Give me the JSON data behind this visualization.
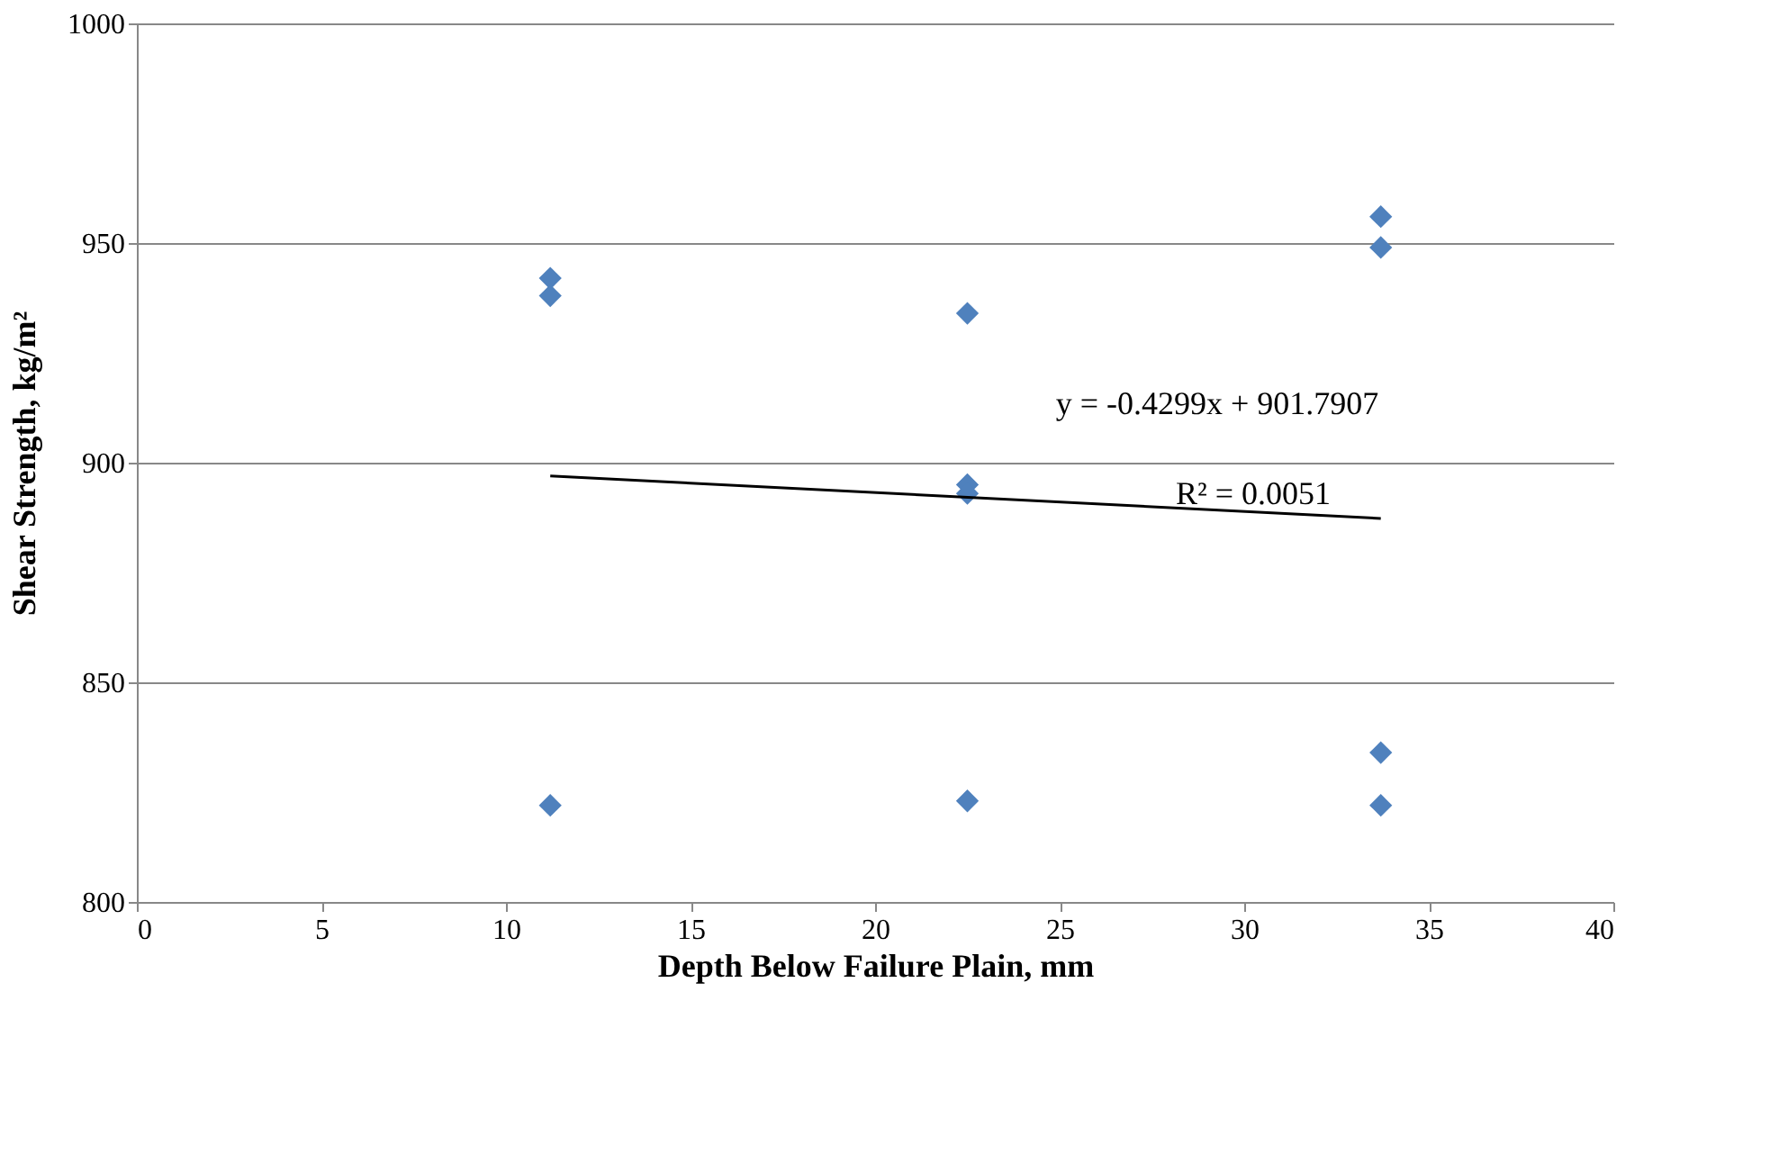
{
  "chart_data": {
    "type": "scatter",
    "xlabel": "Depth Below Failure Plain, mm",
    "ylabel": "Shear Strength, kg/m²",
    "xlim": [
      0,
      40
    ],
    "xticks": [
      0,
      5,
      10,
      15,
      20,
      25,
      30,
      35,
      40
    ],
    "ylim": [
      800,
      1000
    ],
    "yticks": [
      800,
      850,
      900,
      950,
      1000
    ],
    "grid": "y",
    "legend": false,
    "marker": "diamond",
    "series": [
      {
        "color": "#4f81bd",
        "x": [
          11.2,
          11.2,
          11.2,
          22.5,
          22.5,
          22.5,
          22.5,
          33.7,
          33.7,
          33.7,
          33.7
        ],
        "values": [
          942,
          938,
          822,
          934,
          895,
          893,
          823,
          956,
          949,
          834,
          822
        ]
      },
      {
        "type": "line",
        "color": "#000000",
        "x": [
          11.2,
          33.7
        ],
        "values": [
          897.0,
          887.3
        ],
        "marker": "none",
        "line_style": "solid"
      }
    ],
    "annotations": [
      "y = -0.4299x + 901.7907",
      "R² = 0.0051"
    ]
  }
}
